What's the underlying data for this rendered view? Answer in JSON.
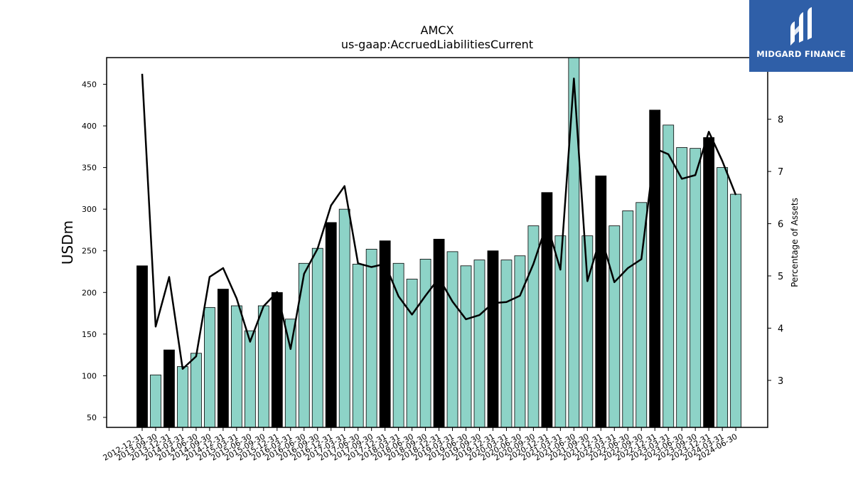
{
  "chart_data": {
    "type": "bar",
    "title": "AMCX",
    "subtitle": "us-gaap:AccruedLiabilitiesCurrent",
    "ylabel": "USDm",
    "y2label": "Percentage of Assets",
    "ylim": [
      38,
      482
    ],
    "y2lim": [
      2.1,
      9.18
    ],
    "yticks": [
      50,
      100,
      150,
      200,
      250,
      300,
      350,
      400,
      450
    ],
    "y2ticks": [
      3,
      4,
      5,
      6,
      7,
      8
    ],
    "categories": [
      "2012-12-31",
      "2013-09-30",
      "2013-12-31",
      "2014-03-31",
      "2014-06-30",
      "2014-09-30",
      "2014-12-31",
      "2015-03-31",
      "2015-06-30",
      "2015-09-30",
      "2015-12-31",
      "2016-03-31",
      "2016-06-30",
      "2016-09-30",
      "2016-12-31",
      "2017-03-31",
      "2017-06-30",
      "2017-09-30",
      "2017-12-31",
      "2018-03-31",
      "2018-06-30",
      "2018-09-30",
      "2018-12-31",
      "2019-03-31",
      "2019-06-30",
      "2019-09-30",
      "2019-12-31",
      "2020-03-31",
      "2020-06-30",
      "2020-09-30",
      "2020-12-31",
      "2021-03-31",
      "2021-06-30",
      "2021-09-30",
      "2021-12-31",
      "2022-03-31",
      "2022-06-30",
      "2022-09-30",
      "2022-12-31",
      "2023-03-31",
      "2023-06-30",
      "2023-09-30",
      "2023-12-31",
      "2024-03-31",
      "2024-06-30"
    ],
    "series": [
      {
        "kind": "bar",
        "values": [
          232,
          101,
          131,
          111,
          127,
          182,
          204,
          184,
          154,
          184,
          200,
          168,
          235,
          253,
          284,
          300,
          234,
          252,
          262,
          235,
          216,
          240,
          264,
          249,
          232,
          239,
          250,
          239,
          244,
          280,
          320,
          268,
          483,
          268,
          340,
          280,
          298,
          308,
          419,
          401,
          374,
          373,
          386,
          350,
          318
        ],
        "highlight": [
          true,
          false,
          true,
          false,
          false,
          false,
          true,
          false,
          false,
          false,
          true,
          false,
          false,
          false,
          true,
          false,
          false,
          false,
          true,
          false,
          false,
          false,
          true,
          false,
          false,
          false,
          true,
          false,
          false,
          false,
          true,
          false,
          false,
          false,
          true,
          false,
          false,
          false,
          true,
          false,
          false,
          false,
          true,
          false,
          false
        ],
        "color": "#8dd3c7",
        "highlight_color": "#000000"
      },
      {
        "kind": "line",
        "axis": "right",
        "values": [
          8.87,
          4.03,
          4.98,
          3.22,
          3.46,
          4.98,
          5.15,
          4.57,
          3.74,
          4.42,
          4.69,
          3.6,
          5.04,
          5.52,
          6.35,
          6.72,
          5.24,
          5.17,
          5.23,
          4.61,
          4.26,
          4.62,
          4.96,
          4.51,
          4.17,
          4.25,
          4.48,
          4.5,
          4.62,
          5.23,
          6.0,
          5.12,
          8.78,
          4.9,
          5.76,
          4.88,
          5.15,
          5.32,
          7.44,
          7.33,
          6.86,
          6.93,
          7.76,
          7.2,
          6.55
        ],
        "color": "#000000"
      }
    ],
    "grid": false,
    "legend": "none"
  },
  "logo": {
    "brand": "MIDGARD FINANCE",
    "icon": "midgard-m-logo-icon"
  }
}
